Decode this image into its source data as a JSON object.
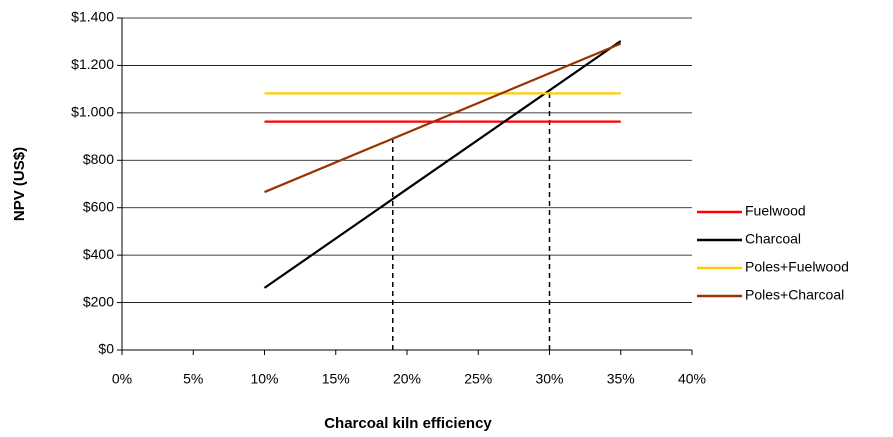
{
  "chart_data": {
    "type": "line",
    "xlabel": "Charcoal kiln efficiency",
    "ylabel": "NPV (US$)",
    "x": [
      10,
      35
    ],
    "series": [
      {
        "name": "Fuelwood",
        "color": "#ff0000",
        "values": [
          963,
          963
        ]
      },
      {
        "name": "Charcoal",
        "color": "#000000",
        "values": [
          262,
          1303
        ]
      },
      {
        "name": "Poles+Fuelwood",
        "color": "#ffcc00",
        "values": [
          1082,
          1082
        ]
      },
      {
        "name": "Poles+Charcoal",
        "color": "#993300",
        "values": [
          666,
          1292
        ]
      }
    ],
    "vlines": [
      {
        "x": 19,
        "y": 890
      },
      {
        "x": 30,
        "y": 1090
      }
    ],
    "xlim": [
      0,
      40
    ],
    "xticks": [
      {
        "value": 0,
        "label": "0%"
      },
      {
        "value": 5,
        "label": "5%"
      },
      {
        "value": 10,
        "label": "10%"
      },
      {
        "value": 15,
        "label": "15%"
      },
      {
        "value": 20,
        "label": "20%"
      },
      {
        "value": 25,
        "label": "25%"
      },
      {
        "value": 30,
        "label": "30%"
      },
      {
        "value": 35,
        "label": "35%"
      },
      {
        "value": 40,
        "label": "40%"
      }
    ],
    "ylim": [
      0,
      1400
    ],
    "yticks": [
      {
        "value": 0,
        "label": "$0"
      },
      {
        "value": 200,
        "label": "$200"
      },
      {
        "value": 400,
        "label": "$400"
      },
      {
        "value": 600,
        "label": "$600"
      },
      {
        "value": 800,
        "label": "$800"
      },
      {
        "value": 1000,
        "label": "$1.000"
      },
      {
        "value": 1200,
        "label": "$1.200"
      },
      {
        "value": 1400,
        "label": "$1.400"
      }
    ],
    "grid": true,
    "legend": "right"
  }
}
